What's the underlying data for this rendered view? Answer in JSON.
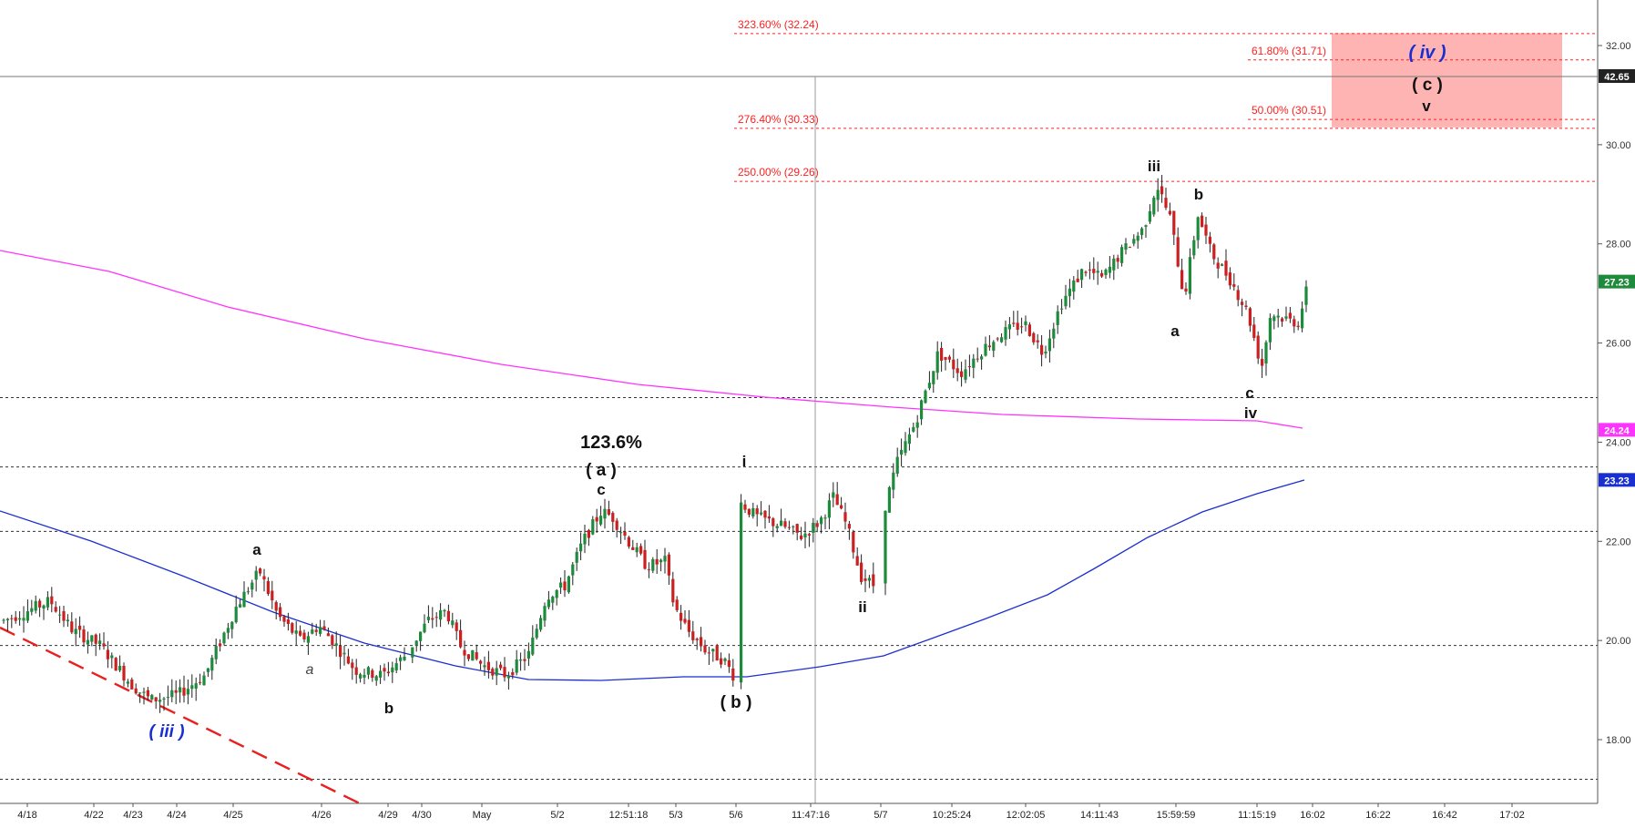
{
  "chart_data": {
    "type": "candlestick",
    "ylim": [
      16.8,
      33.3
    ],
    "y_ticks": [
      "18.00",
      "20.00",
      "22.00",
      "24.00",
      "26.00",
      "28.00",
      "30.00",
      "32.00"
    ],
    "x_ticks": [
      "4/18",
      "4/22",
      "4/23",
      "4/24",
      "4/25",
      "4/26",
      "4/29",
      "4/30",
      "May",
      "5/2",
      "12:51:18",
      "5/3",
      "5/6",
      "11:47:16",
      "5/7",
      "10:25:24",
      "12:02:05",
      "14:11:43",
      "15:59:59",
      "11:15:19",
      "16:02",
      "16:22",
      "16:42",
      "17:02"
    ],
    "price_tags": [
      {
        "value": 42.65,
        "label": "42.65",
        "color": "#222222",
        "text_color": "#ffffff"
      },
      {
        "value": 27.23,
        "label": "27.23",
        "color": "#1e8a3c",
        "text_color": "#ffffff"
      },
      {
        "value": 24.24,
        "label": "24.24",
        "color": "#ff33ff",
        "text_color": "#ffffff"
      },
      {
        "value": 23.23,
        "label": "23.23",
        "color": "#1a2fcf",
        "text_color": "#ffffff"
      }
    ],
    "crosshair_price": 42.65,
    "horizontal_levels": [
      24.9,
      23.5,
      22.2,
      19.9,
      17.2
    ],
    "fib_levels": [
      {
        "label": "323.60% (32.24)",
        "value": 32.24
      },
      {
        "label": "276.40% (30.33)",
        "value": 30.33
      },
      {
        "label": "250.00% (29.26)",
        "value": 29.26
      },
      {
        "label": "61.80% (31.71)",
        "value": 31.71
      },
      {
        "label": "50.00% (30.51)",
        "value": 30.51
      }
    ],
    "target_zone": {
      "low": 30.35,
      "high": 32.25,
      "color": "#ffb0b0"
    },
    "labels": {
      "big_pct": "123.6%",
      "wave_a_paren": "( a )",
      "wave_b_paren": "( b )",
      "wave_c_paren": "( c )",
      "wave_iii_paren": "( iii )",
      "wave_iv_paren": "( iv )",
      "i": "i",
      "ii": "ii",
      "iii": "iii",
      "iv": "iv",
      "v": "v",
      "a": "a",
      "b": "b",
      "c": "c"
    },
    "moving_averages": [
      {
        "color": "#ff33ff",
        "last": 24.24
      },
      {
        "color": "#1a2fcf",
        "last": 23.23
      }
    ],
    "up_color": "#1e8a3c",
    "down_color": "#cc1f1f",
    "fib_color": "#ff2020",
    "wave_blue": "#1a2fcf"
  }
}
